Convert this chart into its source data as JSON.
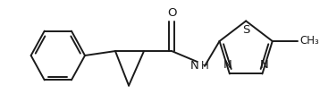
{
  "bg_color": "#ffffff",
  "line_color": "#1a1a1a",
  "line_width": 1.4,
  "figsize": [
    3.58,
    1.24
  ],
  "dpi": 100,
  "xlim": [
    0,
    358
  ],
  "ylim": [
    0,
    124
  ]
}
